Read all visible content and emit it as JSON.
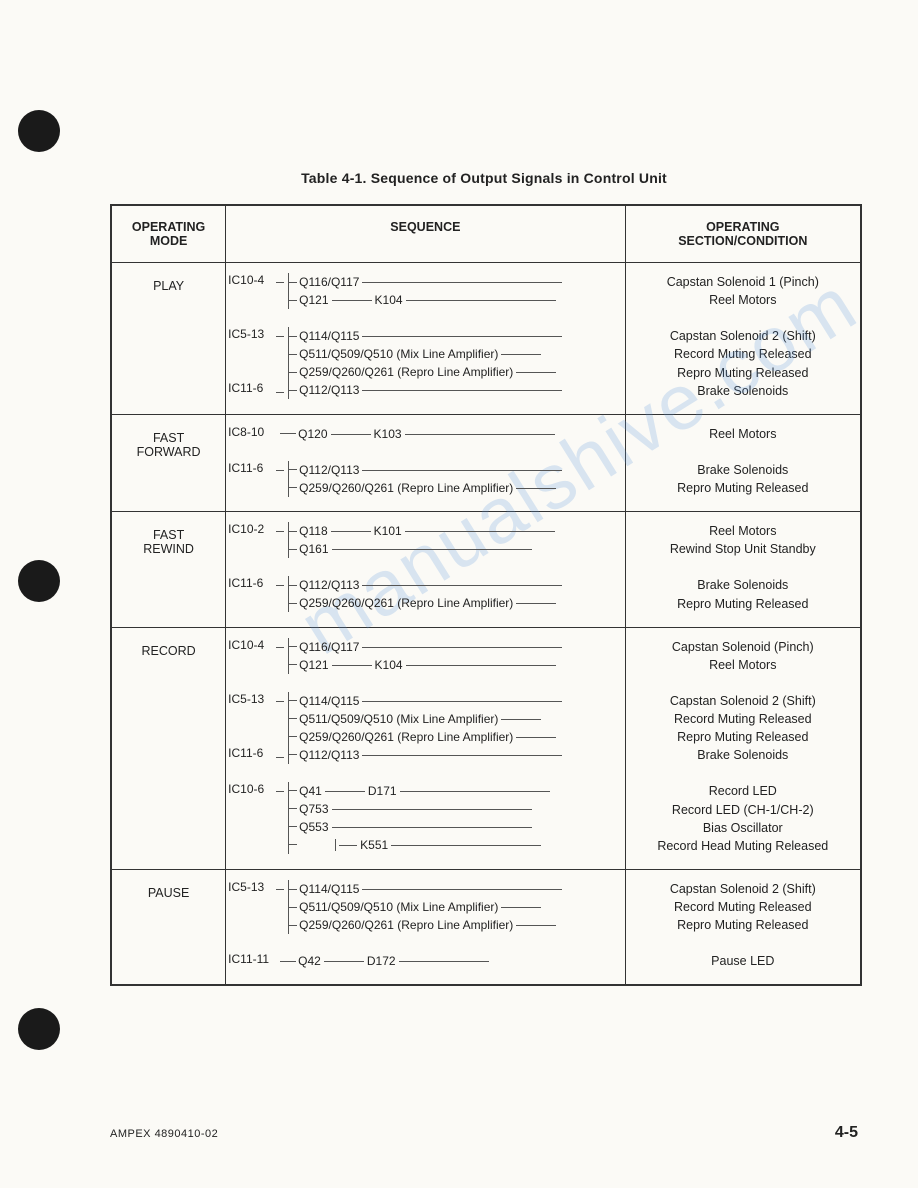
{
  "caption": "Table 4-1. Sequence of Output Signals in Control Unit",
  "headers": {
    "mode": "OPERATING\nMODE",
    "sequence": "SEQUENCE",
    "condition": "OPERATING\nSECTION/CONDITION"
  },
  "rows": [
    {
      "mode": "PLAY",
      "groups": [
        {
          "source": "IC10-4",
          "branches": [
            {
              "parts": [
                "Q116/Q117"
              ],
              "tail": "xxl"
            },
            {
              "parts": [
                "Q121",
                "K104"
              ],
              "tail": "xl"
            }
          ],
          "conditions": [
            "Capstan Solenoid 1 (Pinch)",
            "Reel Motors"
          ]
        },
        {
          "source": "IC5-13",
          "secondSource": "IC11-6",
          "branches": [
            {
              "parts": [
                "Q114/Q115"
              ],
              "tail": "xxl"
            },
            {
              "parts": [
                "Q511/Q509/Q510 (Mix Line Amplifier)"
              ],
              "tail": "m"
            },
            {
              "parts": [
                "Q259/Q260/Q261 (Repro Line Amplifier)"
              ],
              "tail": "m"
            },
            {
              "parts": [
                "Q112/Q113"
              ],
              "tail": "xxl"
            }
          ],
          "conditions": [
            "Capstan Solenoid 2 (Shift)",
            "Record Muting Released",
            "Repro Muting Released",
            "Brake Solenoids"
          ]
        }
      ]
    },
    {
      "mode": "FAST\nFORWARD",
      "groups": [
        {
          "source": "IC8-10",
          "singleLine": true,
          "branches": [
            {
              "parts": [
                "Q120",
                "K103"
              ],
              "tail": "xl"
            }
          ],
          "conditions": [
            "Reel Motors"
          ]
        },
        {
          "source": "IC11-6",
          "branches": [
            {
              "parts": [
                "Q112/Q113"
              ],
              "tail": "xxl"
            },
            {
              "parts": [
                "Q259/Q260/Q261 (Repro Line Amplifier)"
              ],
              "tail": "m"
            }
          ],
          "conditions": [
            "Brake Solenoids",
            "Repro Muting Released"
          ]
        }
      ]
    },
    {
      "mode": "FAST\nREWIND",
      "groups": [
        {
          "source": "IC10-2",
          "branches": [
            {
              "parts": [
                "Q118",
                "K101"
              ],
              "tail": "xl"
            },
            {
              "parts": [
                "Q161"
              ],
              "tail": "xxl"
            }
          ],
          "conditions": [
            "Reel Motors",
            "Rewind Stop Unit Standby"
          ]
        },
        {
          "source": "IC11-6",
          "branches": [
            {
              "parts": [
                "Q112/Q113"
              ],
              "tail": "xxl"
            },
            {
              "parts": [
                "Q259/Q260/Q261 (Repro Line Amplifier)"
              ],
              "tail": "m"
            }
          ],
          "conditions": [
            "Brake Solenoids",
            "Repro Muting Released"
          ]
        }
      ]
    },
    {
      "mode": "RECORD",
      "groups": [
        {
          "source": "IC10-4",
          "branches": [
            {
              "parts": [
                "Q116/Q117"
              ],
              "tail": "xxl"
            },
            {
              "parts": [
                "Q121",
                "K104"
              ],
              "tail": "xl"
            }
          ],
          "conditions": [
            "Capstan Solenoid (Pinch)",
            "Reel Motors"
          ]
        },
        {
          "source": "IC5-13",
          "secondSource": "IC11-6",
          "branches": [
            {
              "parts": [
                "Q114/Q115"
              ],
              "tail": "xxl"
            },
            {
              "parts": [
                "Q511/Q509/Q510 (Mix Line Amplifier)"
              ],
              "tail": "m"
            },
            {
              "parts": [
                "Q259/Q260/Q261 (Repro Line Amplifier)"
              ],
              "tail": "m"
            },
            {
              "parts": [
                "Q112/Q113"
              ],
              "tail": "xxl"
            }
          ],
          "conditions": [
            "Capstan Solenoid 2 (Shift)",
            "Record Muting Released",
            "Repro Muting Released",
            "Brake Solenoids"
          ]
        },
        {
          "source": "IC10-6",
          "branches": [
            {
              "parts": [
                "Q41",
                "D171"
              ],
              "tail": "xl"
            },
            {
              "parts": [
                "Q753"
              ],
              "tail": "xxl"
            },
            {
              "parts": [
                "Q553"
              ],
              "tail": "xxl"
            },
            {
              "parts": [
                "",
                "K551"
              ],
              "indent": true,
              "tail": "xl"
            }
          ],
          "conditions": [
            "Record LED",
            "Record LED (CH-1/CH-2)",
            "Bias Oscillator",
            "Record Head Muting Released"
          ]
        }
      ]
    },
    {
      "mode": "PAUSE",
      "groups": [
        {
          "source": "IC5-13",
          "branches": [
            {
              "parts": [
                "Q114/Q115"
              ],
              "tail": "xxl"
            },
            {
              "parts": [
                "Q511/Q509/Q510 (Mix Line Amplifier)"
              ],
              "tail": "m"
            },
            {
              "parts": [
                "Q259/Q260/Q261 (Repro Line Amplifier)"
              ],
              "tail": "m"
            }
          ],
          "conditions": [
            "Capstan Solenoid 2 (Shift)",
            "Record Muting Released",
            "Repro Muting Released"
          ]
        },
        {
          "source": "IC11-11",
          "singleLine": true,
          "branches": [
            {
              "parts": [
                "Q42",
                "D172"
              ],
              "tail": "l"
            }
          ],
          "conditions": [
            "Pause LED"
          ]
        }
      ]
    }
  ],
  "footer_left": "AMPEX 4890410-02",
  "footer_right": "4-5",
  "watermark": "manualshive.com"
}
